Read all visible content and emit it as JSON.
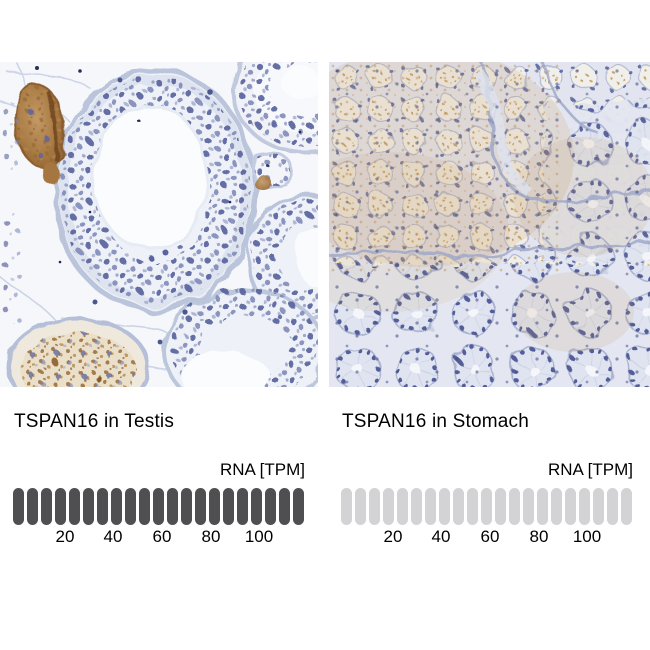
{
  "figure": {
    "panels": [
      {
        "tissue": "Testis",
        "caption": "TSPAN16 in Testis",
        "micrograph_kind": "immunohistochemistry",
        "rna_scale": {
          "unit_label": "RNA [TPM]",
          "tick_labels": [
            "20",
            "40",
            "60",
            "80",
            "100"
          ],
          "pill_count": 21,
          "pill_color": "#4f4f52",
          "bar_style": "all segments dark"
        }
      },
      {
        "tissue": "Stomach",
        "caption": "TSPAN16 in Stomach",
        "micrograph_kind": "immunohistochemistry",
        "rna_scale": {
          "unit_label": "RNA [TPM]",
          "tick_labels": [
            "20",
            "40",
            "60",
            "80",
            "100"
          ],
          "pill_count": 21,
          "pill_color": "#d3d3d6",
          "bar_style": "all segments light"
        }
      }
    ],
    "palette": {
      "background": "#ffffff",
      "hematoxylin_blue": "#545f9b",
      "dab_brown": "#9a6a35",
      "tissue_pale": "#e8eaf2",
      "dark_pill": "#4f4f52",
      "light_pill": "#d3d3d6"
    }
  },
  "chart_data": [
    {
      "type": "bar",
      "title": "TSPAN16 in Testis",
      "xlabel": "RNA [TPM]",
      "x_ticks": [
        20,
        40,
        60,
        80,
        100
      ],
      "x_range": [
        0,
        120
      ],
      "segments": 21,
      "segments_dark": 21,
      "fill_color": "#4f4f52"
    },
    {
      "type": "bar",
      "title": "TSPAN16 in Stomach",
      "xlabel": "RNA [TPM]",
      "x_ticks": [
        20,
        40,
        60,
        80,
        100
      ],
      "x_range": [
        0,
        120
      ],
      "segments": 21,
      "segments_dark": 0,
      "fill_color": "#d3d3d6"
    }
  ]
}
